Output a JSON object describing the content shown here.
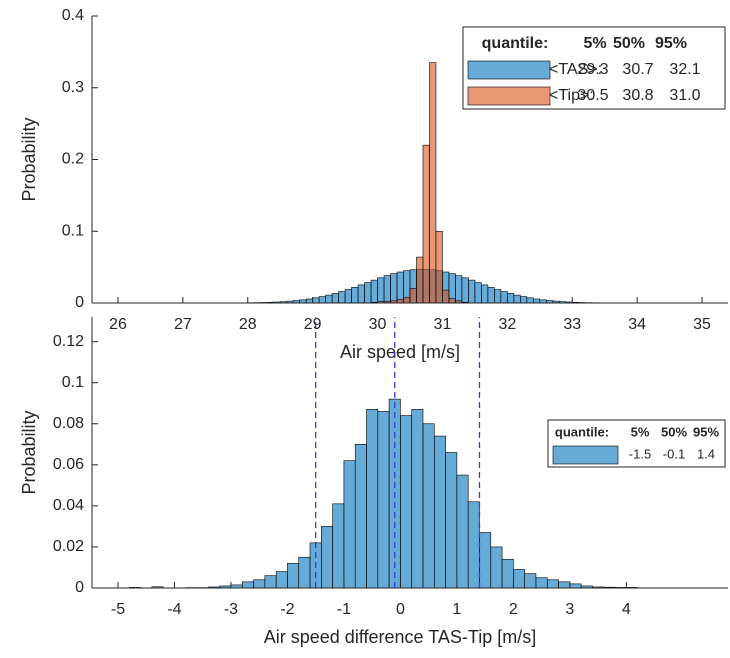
{
  "chart_data": [
    {
      "type": "histogram",
      "xlabel": "Air speed [m/s]",
      "ylabel": "Probability",
      "xlim": [
        25.6,
        35.4
      ],
      "ylim": [
        0,
        0.4
      ],
      "xticks": [
        26,
        27,
        28,
        29,
        30,
        31,
        32,
        33,
        34,
        35
      ],
      "yticks": [
        0,
        0.1,
        0.2,
        0.3,
        0.4
      ],
      "legend_header": [
        "quantile:",
        "5%",
        "50%",
        "95%"
      ],
      "legend": "upper right",
      "series": [
        {
          "name": "<TAS>:",
          "color": "#0072bd",
          "bins": [
            27.6,
            27.7,
            27.8,
            27.9,
            28.0,
            28.1,
            28.2,
            28.3,
            28.4,
            28.5,
            28.6,
            28.7,
            28.8,
            28.9,
            29.0,
            29.1,
            29.2,
            29.3,
            29.4,
            29.5,
            29.6,
            29.7,
            29.8,
            29.9,
            30.0,
            30.1,
            30.2,
            30.3,
            30.4,
            30.5,
            30.6,
            30.7,
            30.8,
            30.9,
            31.0,
            31.1,
            31.2,
            31.3,
            31.4,
            31.5,
            31.6,
            31.7,
            31.8,
            31.9,
            32.0,
            32.1,
            32.2,
            32.3,
            32.4,
            32.5,
            32.6,
            32.7,
            32.8,
            32.9,
            33.0,
            33.1,
            33.2,
            33.3,
            33.4,
            33.5,
            33.6
          ],
          "values": [
            0.0001,
            0.0001,
            0.0002,
            0.0003,
            0.0004,
            0.0005,
            0.0007,
            0.001,
            0.0014,
            0.0019,
            0.0026,
            0.0034,
            0.0044,
            0.0056,
            0.0072,
            0.0089,
            0.011,
            0.0133,
            0.016,
            0.0188,
            0.0219,
            0.0252,
            0.0285,
            0.0319,
            0.0351,
            0.0381,
            0.0409,
            0.0432,
            0.045,
            0.0463,
            0.0469,
            0.0469,
            0.0463,
            0.045,
            0.0432,
            0.0409,
            0.0381,
            0.0351,
            0.0319,
            0.0285,
            0.0252,
            0.0219,
            0.0188,
            0.016,
            0.0133,
            0.011,
            0.0089,
            0.0072,
            0.0056,
            0.0044,
            0.0034,
            0.0026,
            0.0019,
            0.0014,
            0.001,
            0.0007,
            0.0005,
            0.0004,
            0.0003,
            0.0002
          ],
          "quantiles": [
            29.3,
            30.7,
            32.1
          ]
        },
        {
          "name": "<Tip>:",
          "color": "#d95319",
          "bins": [
            29.9,
            30.0,
            30.1,
            30.2,
            30.3,
            30.4,
            30.5,
            30.6,
            30.7,
            30.8,
            30.9,
            31.0,
            31.1,
            31.2,
            31.3,
            31.4
          ],
          "values": [
            0.001,
            0.002,
            0.002,
            0.003,
            0.005,
            0.008,
            0.02,
            0.064,
            0.22,
            0.335,
            0.1,
            0.018,
            0.006,
            0.003,
            0.001
          ],
          "quantiles": [
            30.5,
            30.8,
            {
              "value": 31,
              "label": "31.0"
            }
          ]
        }
      ]
    },
    {
      "type": "histogram",
      "xlabel": "Air speed difference TAS-Tip [m/s]",
      "ylabel": "Probability",
      "xlim": [
        -5.46,
        5.8
      ],
      "ylim": [
        0,
        0.132
      ],
      "xticks": [
        -5,
        -4,
        -3,
        -2,
        -1,
        0,
        1,
        2,
        3,
        4
      ],
      "yticks": [
        0,
        0.02,
        0.04,
        0.06,
        0.08,
        0.1,
        0.12
      ],
      "legend_header": [
        "quantile:",
        "5%",
        "50%",
        "95%"
      ],
      "legend": "right",
      "quantile_lines": true,
      "quantile_line_color": "#3a3ad6",
      "series": [
        {
          "color": "#0072bd",
          "bins": [
            -4.8,
            -4.6,
            -4.4,
            -4.2,
            -4.0,
            -3.8,
            -3.6,
            -3.4,
            -3.2,
            -3.0,
            -2.8,
            -2.6,
            -2.4,
            -2.2,
            -2.0,
            -1.8,
            -1.6,
            -1.4,
            -1.2,
            -1.0,
            -0.8,
            -0.6,
            -0.4,
            -0.2,
            0,
            0.2,
            0.4,
            0.6,
            0.8,
            1.0,
            1.2,
            1.4,
            1.6,
            1.8,
            2.0,
            2.2,
            2.4,
            2.6,
            2.8,
            3.0,
            3.2,
            3.4,
            3.6,
            3.8,
            4.0,
            4.2
          ],
          "values": [
            0.0003,
            0,
            0.0006,
            0,
            0,
            0.0002,
            0.0002,
            0.0005,
            0.001,
            0.0015,
            0.003,
            0.004,
            0.006,
            0.008,
            0.012,
            0.015,
            0.022,
            0.03,
            0.041,
            0.062,
            0.07,
            0.087,
            0.086,
            0.092,
            0.084,
            0.087,
            0.08,
            0.074,
            0.066,
            0.055,
            0.042,
            0.027,
            0.02,
            0.014,
            0.009,
            0.007,
            0.005,
            0.004,
            0.003,
            0.002,
            0.001,
            0.0005,
            0.0004,
            0.0003,
            0.0003
          ],
          "quantiles": [
            -1.5,
            -0.1,
            1.4
          ]
        }
      ]
    }
  ]
}
